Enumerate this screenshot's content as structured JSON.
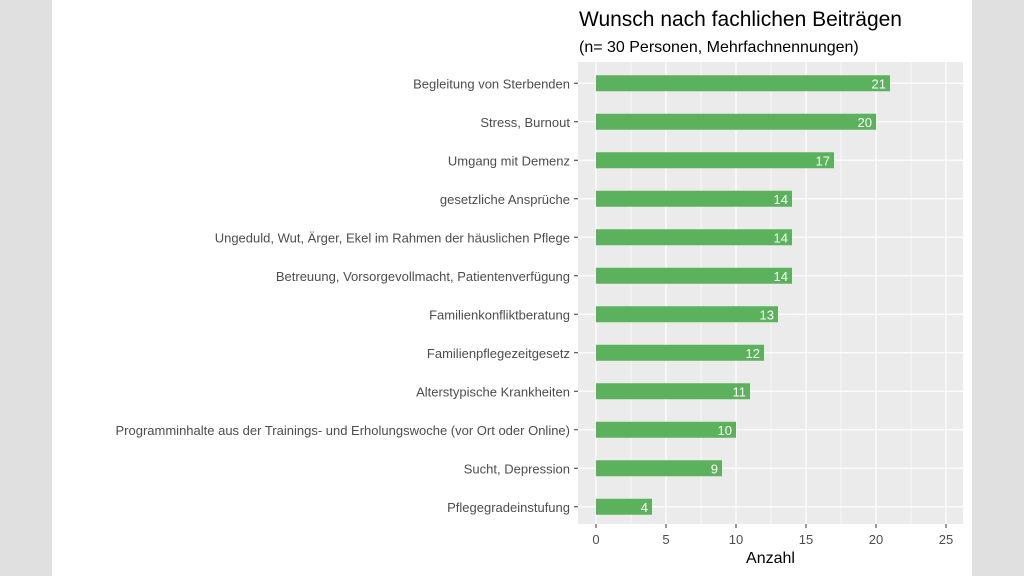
{
  "chart_data": {
    "type": "bar",
    "orientation": "horizontal",
    "title": "Wunsch nach fachlichen Beiträgen",
    "subtitle": "(n= 30 Personen, Mehrfachnennungen)",
    "xlabel": "Anzahl",
    "ylabel": "",
    "xlim": [
      0,
      26
    ],
    "xticks": [
      0,
      5,
      10,
      15,
      20,
      25
    ],
    "grid": true,
    "bar_color": "#5cb25c",
    "panel_color": "#ebebeb",
    "categories": [
      "Begleitung von Sterbenden",
      "Stress, Burnout",
      "Umgang mit Demenz",
      "gesetzliche Ansprüche",
      "Ungeduld, Wut, Ärger, Ekel im Rahmen der häuslichen Pflege",
      "Betreuung, Vorsorgevollmacht, Patientenverfügung",
      "Familienkonfliktberatung",
      "Familienpflegezeitgesetz",
      "Alterstypische Krankheiten",
      "Programminhalte aus der Trainings- und Erholungswoche (vor Ort oder Online)",
      "Sucht, Depression",
      "Pflegegradeinstufung"
    ],
    "values": [
      21,
      20,
      17,
      14,
      14,
      14,
      13,
      12,
      11,
      10,
      9,
      4
    ]
  }
}
